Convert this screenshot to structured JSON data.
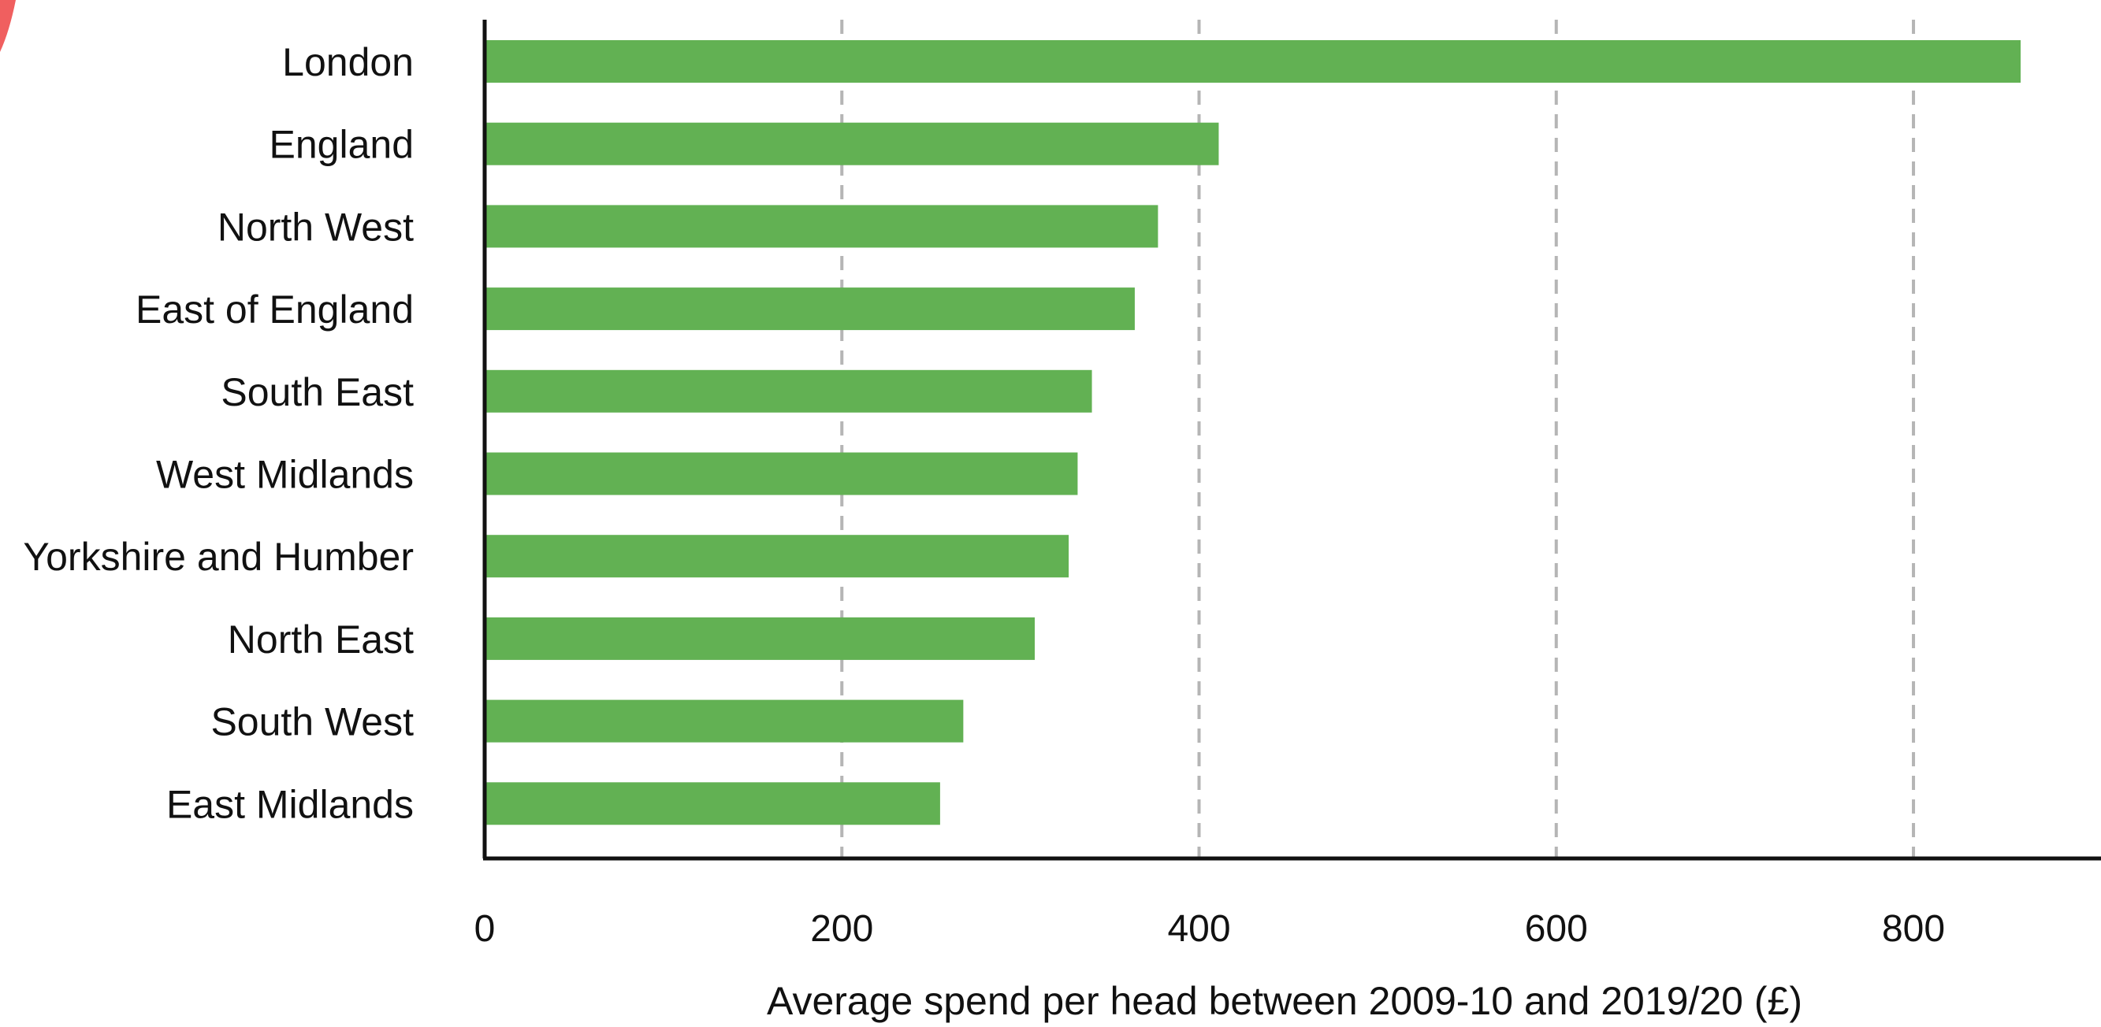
{
  "chart_data": {
    "type": "bar",
    "orientation": "horizontal",
    "categories": [
      "London",
      "England",
      "North West",
      "East of England",
      "South East",
      "West Midlands",
      "Yorkshire and Humber",
      "North East",
      "South West",
      "East Midlands"
    ],
    "values": [
      860,
      411,
      377,
      364,
      340,
      332,
      327,
      308,
      268,
      255
    ],
    "xlabel": "Average spend per head between 2009-10 and 2019/20 (£)",
    "ylabel": "",
    "xlim": [
      0,
      905
    ],
    "xticks": [
      "0",
      "200",
      "400",
      "600",
      "800"
    ],
    "grid": "vertical dashed",
    "legend": "none",
    "bar_color": "#62b153",
    "grid_color": "#b5b5b5",
    "axis_color": "#111111",
    "accent_color": "#f05f5f"
  }
}
